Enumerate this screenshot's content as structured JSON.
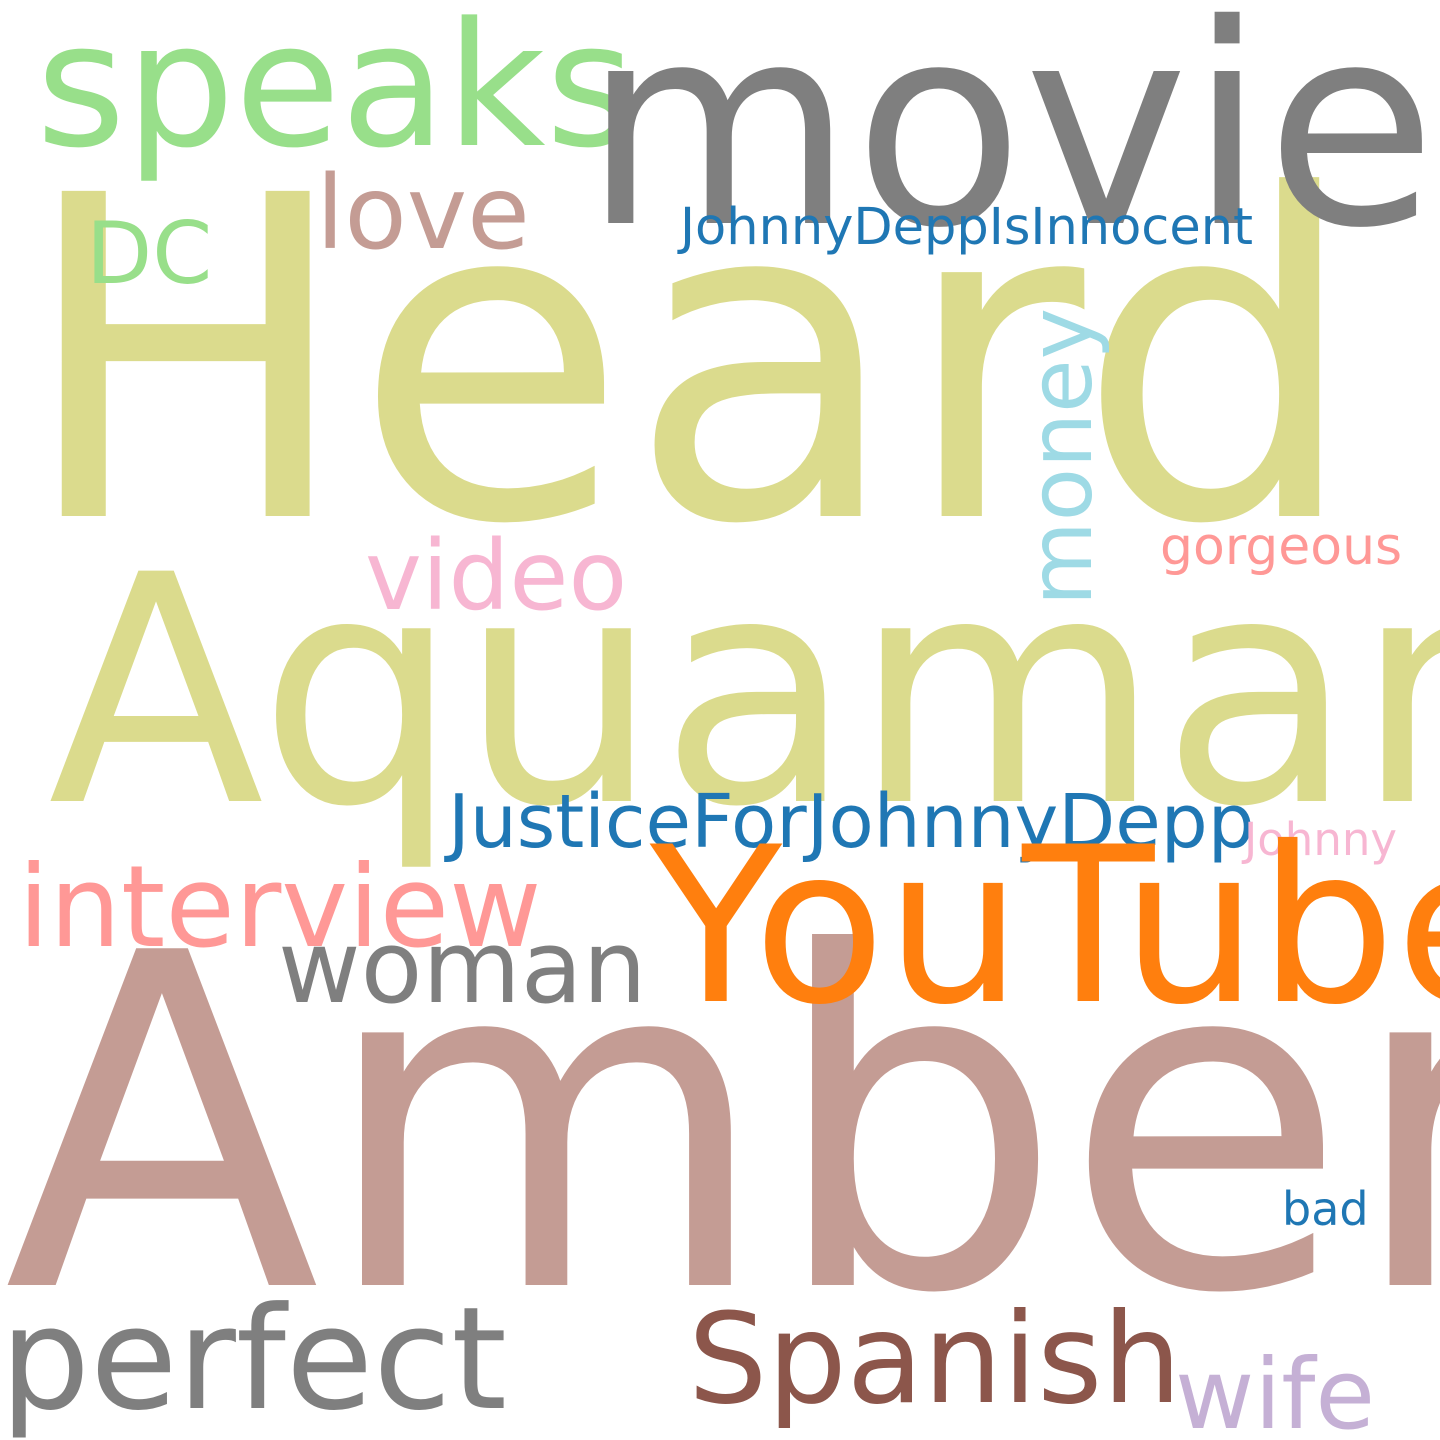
{
  "word_cloud": {
    "background": "#ffffff",
    "words": {
      "heard": {
        "text": "Heard",
        "color": "#dbdb8d"
      },
      "movie": {
        "text": "movie",
        "color": "#7f7f7f"
      },
      "speaks": {
        "text": "speaks",
        "color": "#98df8a"
      },
      "aquaman": {
        "text": "Aquaman",
        "color": "#dbdb8d"
      },
      "love": {
        "text": "love",
        "color": "#c49c94"
      },
      "dc": {
        "text": "DC",
        "color": "#98df8a"
      },
      "johnnydeppisinnocent": {
        "text": "JohnnyDeppIsInnocent",
        "color": "#1f77b4"
      },
      "money": {
        "text": "money",
        "color": "#9edae5"
      },
      "video": {
        "text": "video",
        "color": "#f7b6d2"
      },
      "gorgeous": {
        "text": "gorgeous",
        "color": "#ff9896"
      },
      "justicefor": {
        "text": "JusticeForJohnnyDepp",
        "color": "#1f77b4"
      },
      "johnny": {
        "text": "Johnny",
        "color": "#f7b6d2"
      },
      "interview": {
        "text": "interview",
        "color": "#ff9896"
      },
      "youtube": {
        "text": "YouTube",
        "color": "#ff7f0e"
      },
      "woman": {
        "text": "woman",
        "color": "#7f7f7f"
      },
      "amber": {
        "text": "Amber",
        "color": "#c49c94"
      },
      "bad": {
        "text": "bad",
        "color": "#1f77b4"
      },
      "perfect": {
        "text": "perfect",
        "color": "#7f7f7f"
      },
      "spanish": {
        "text": "Spanish",
        "color": "#8c564b"
      },
      "wife": {
        "text": "wife",
        "color": "#c5b0d5"
      }
    }
  }
}
